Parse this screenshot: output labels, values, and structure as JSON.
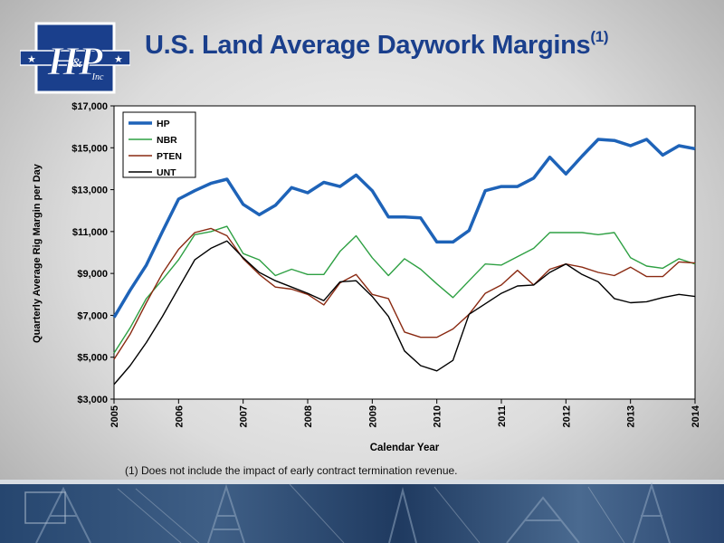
{
  "title": "U.S. Land Average Daywork Margins",
  "title_sup": "(1)",
  "logo_text": "H&P Inc",
  "footnote": "(1) Does not include the impact of early contract termination revenue.",
  "colors": {
    "title": "#1a3f8c",
    "HP": "#1e63b8",
    "NBR": "#2ea043",
    "PTEN": "#8a2a12",
    "UNT": "#000000"
  },
  "chart_data": {
    "type": "line",
    "xlabel": "Calendar Year",
    "ylabel": "Quarterly Average Rig Margin per Day",
    "xlim": [
      2005,
      2014
    ],
    "ylim": [
      3000,
      17000
    ],
    "yticks": [
      3000,
      5000,
      7000,
      9000,
      11000,
      13000,
      15000,
      17000
    ],
    "ytick_labels": [
      "$3,000",
      "$5,000",
      "$7,000",
      "$9,000",
      "$11,000",
      "$13,000",
      "$15,000",
      "$17,000"
    ],
    "xticks": [
      2005,
      2006,
      2007,
      2008,
      2009,
      2010,
      2011,
      2012,
      2013,
      2014
    ],
    "xtick_labels": [
      "2005",
      "2006",
      "2007",
      "2008",
      "2009",
      "2010",
      "2011",
      "2012",
      "2013",
      "2014"
    ],
    "legend": "top-left",
    "grid": false,
    "x": [
      2005.0,
      2005.25,
      2005.5,
      2005.75,
      2006.0,
      2006.25,
      2006.5,
      2006.75,
      2007.0,
      2007.25,
      2007.5,
      2007.75,
      2008.0,
      2008.25,
      2008.5,
      2008.75,
      2009.0,
      2009.25,
      2009.5,
      2009.75,
      2010.0,
      2010.25,
      2010.5,
      2010.75,
      2011.0,
      2011.25,
      2011.5,
      2011.75,
      2012.0,
      2012.25,
      2012.5,
      2012.75,
      2013.0,
      2013.25,
      2013.5,
      2013.75,
      2014.0
    ],
    "series": [
      {
        "name": "HP",
        "values": [
          6900,
          8200,
          9400,
          11000,
          12550,
          12950,
          13300,
          13500,
          12300,
          11800,
          12250,
          13100,
          12850,
          13350,
          13150,
          13700,
          12950,
          11700,
          11700,
          11650,
          10500,
          10500,
          11050,
          12950,
          13150,
          13150,
          13550,
          14550,
          13750,
          14600,
          15400,
          15350,
          15100,
          15400,
          14650,
          15100,
          14950
        ]
      },
      {
        "name": "NBR",
        "values": [
          5200,
          6400,
          7800,
          8700,
          9650,
          10850,
          11000,
          11250,
          9950,
          9650,
          8900,
          9200,
          8950,
          8950,
          10050,
          10800,
          9750,
          8900,
          9700,
          9200,
          8500,
          7850,
          8650,
          9450,
          9400,
          9800,
          10200,
          10950,
          10950,
          10950,
          10850,
          10950,
          9750,
          9350,
          9250,
          9700,
          9450
        ]
      },
      {
        "name": "PTEN",
        "values": [
          4900,
          6100,
          7600,
          9000,
          10150,
          10950,
          11150,
          10800,
          9700,
          8950,
          8350,
          8250,
          8000,
          7500,
          8550,
          8950,
          8000,
          7800,
          6200,
          5950,
          5950,
          6350,
          7050,
          8050,
          8450,
          9150,
          8450,
          9200,
          9450,
          9300,
          9050,
          8900,
          9300,
          8850,
          8850,
          9550,
          9500
        ]
      },
      {
        "name": "UNT",
        "values": [
          3700,
          4600,
          5700,
          6950,
          8300,
          9650,
          10200,
          10550,
          9750,
          9050,
          8650,
          8350,
          8050,
          7700,
          8600,
          8650,
          7900,
          6950,
          5300,
          4600,
          4350,
          4850,
          7050,
          7550,
          8050,
          8400,
          8450,
          9050,
          9450,
          8950,
          8600,
          7800,
          7600,
          7650,
          7850,
          8000,
          7900
        ]
      }
    ]
  }
}
